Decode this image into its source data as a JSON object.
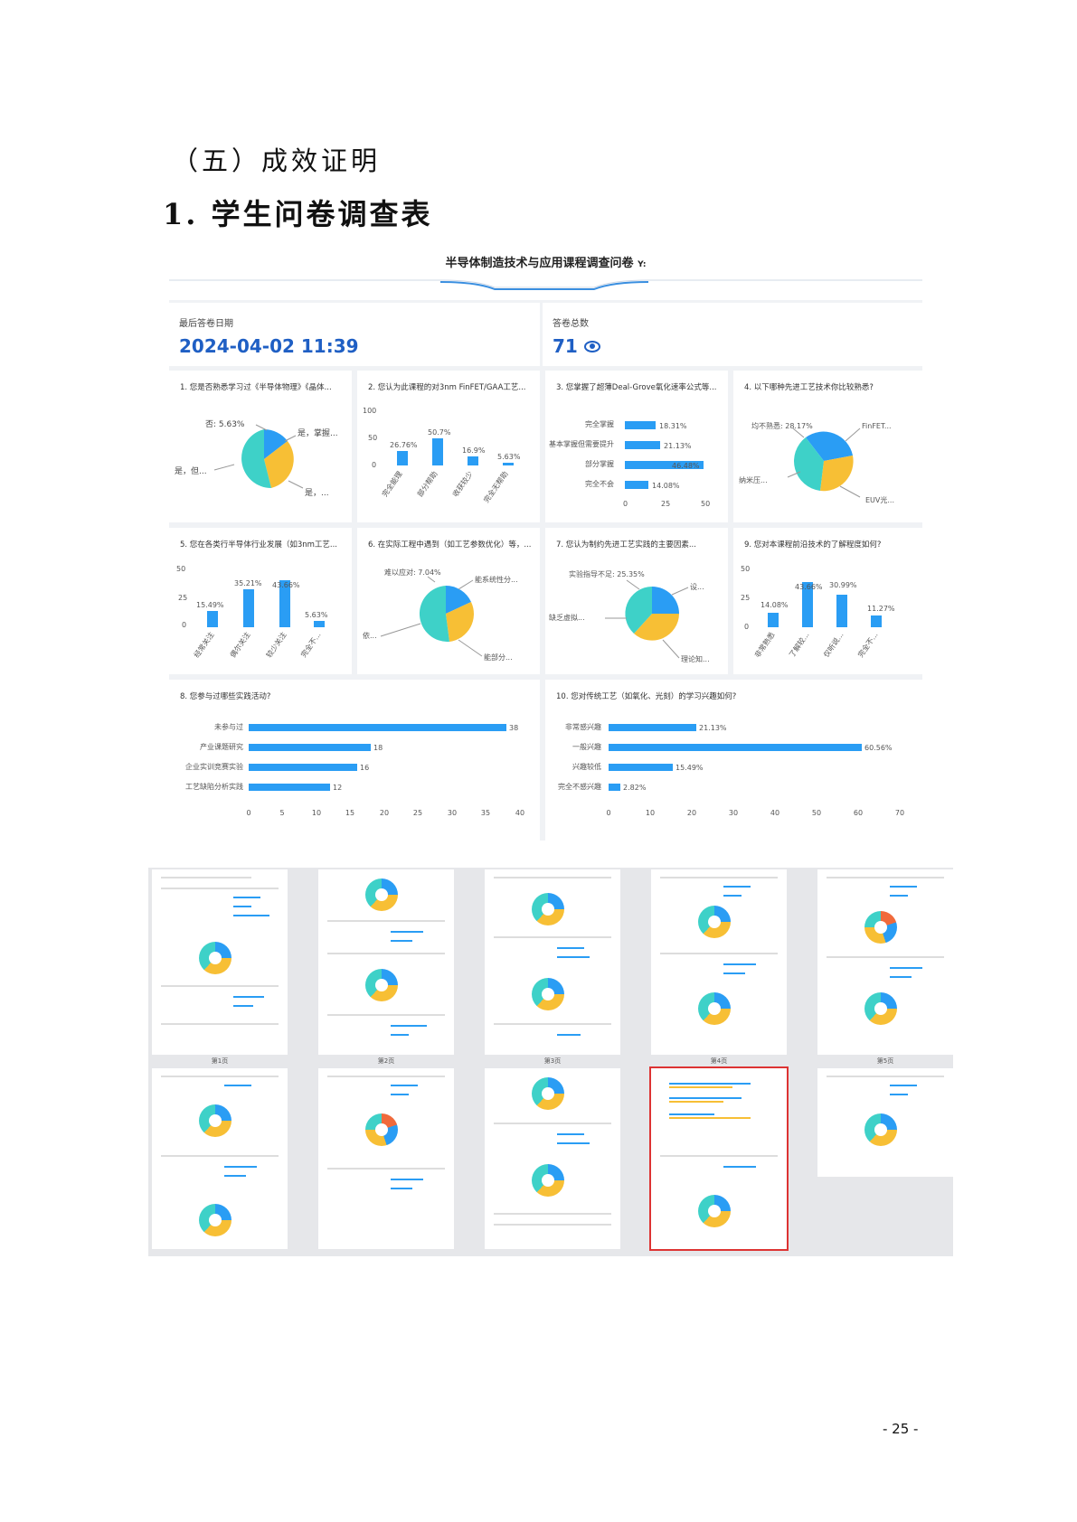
{
  "section_title": "（五）成效证明",
  "heading": "1. 学生问卷调查表",
  "dashboard": {
    "title": "半导体制造技术与应用课程调查问卷",
    "title_suffix": "Y:",
    "last_answer_label": "最后答卷日期",
    "last_answer_value": "2024-04-02 11:39",
    "answer_count_label": "答卷总数",
    "answer_count_value": "71"
  },
  "cards": {
    "q1": {
      "title": "1. 您是否熟悉学习过《半导体物理》《晶体...",
      "labels": [
        "否: 5.63%",
        "是，掌握...",
        "是，但...",
        "是，..."
      ]
    },
    "q2": {
      "title": "2. 您认为此课程的对3nm FinFET/GAA工艺...",
      "ticks": [
        "100",
        "50",
        "0"
      ],
      "values": [
        "26.76%",
        "50.7%",
        "16.9%",
        "5.63%"
      ],
      "cats": [
        "完全能理",
        "部分帮助",
        "收获较少",
        "完全无帮助"
      ]
    },
    "q3": {
      "title": "3. 您掌握了超薄Deal-Grove氧化速率公式等...",
      "cats": [
        "完全掌握",
        "基本掌握但需要提升",
        "部分掌握",
        "完全不会"
      ],
      "values": [
        "18.31%",
        "21.13%",
        "46.48%",
        "14.08%"
      ],
      "ticks": [
        "0",
        "25",
        "50"
      ]
    },
    "q4": {
      "title": "4. 以下哪种先进工艺技术你比较熟悉?",
      "labels": [
        "均不熟悉: 28.17%",
        "FinFET...",
        "纳米压...",
        "EUV光..."
      ]
    },
    "q5": {
      "title": "5. 您在各类行半导体行业发展（如3nm工艺...",
      "ticks": [
        "50",
        "25",
        "0"
      ],
      "values": [
        "15.49%",
        "35.21%",
        "43.66%",
        "5.63%"
      ],
      "cats": [
        "经常关注",
        "偶尔关注",
        "较少关注",
        "完全不..."
      ]
    },
    "q6": {
      "title": "6. 在实际工程中遇到（如工艺参数优化）等，...",
      "labels": [
        "难以应对: 7.04%",
        "能系统性分...",
        "依...",
        "能部分..."
      ]
    },
    "q7": {
      "title": "7. 您认为制约先进工艺实践的主要因素...",
      "labels": [
        "实验指导不足: 25.35%",
        "设...",
        "缺乏虚拟...",
        "理论知..."
      ]
    },
    "q9": {
      "title": "9. 您对本课程前沿技术的了解程度如何?",
      "ticks": [
        "50",
        "25",
        "0"
      ],
      "values": [
        "14.08%",
        "43.66%",
        "30.99%",
        "11.27%"
      ],
      "cats": [
        "非常熟悉",
        "了解较...",
        "仅听说...",
        "完全不..."
      ]
    },
    "q8": {
      "title": "8. 您参与过哪些实践活动?",
      "cats": [
        "未参与过",
        "产业课题研究",
        "企业实训竞赛实验",
        "工艺缺陷分析实践"
      ],
      "values": [
        "38",
        "18",
        "16",
        "12"
      ],
      "ticks": [
        "0",
        "5",
        "10",
        "15",
        "20",
        "25",
        "30",
        "35",
        "40"
      ]
    },
    "q10": {
      "title": "10. 您对传统工艺（如氧化、光刻）的学习兴趣如何?",
      "cats": [
        "非常感兴趣",
        "一般兴趣",
        "兴趣较低",
        "完全不感兴趣"
      ],
      "values": [
        "21.13%",
        "60.56%",
        "15.49%",
        "2.82%"
      ],
      "ticks": [
        "0",
        "10",
        "20",
        "30",
        "40",
        "50",
        "60",
        "70"
      ]
    }
  },
  "thumb_captions": [
    "第1页",
    "第2页",
    "第3页",
    "第4页",
    "第5页"
  ],
  "page_number": "- 25 -",
  "colors": {
    "blue": "#2a9df4",
    "yellow": "#f7bf35",
    "teal": "#3ed1c8",
    "accent": "#1f5fc4"
  }
}
